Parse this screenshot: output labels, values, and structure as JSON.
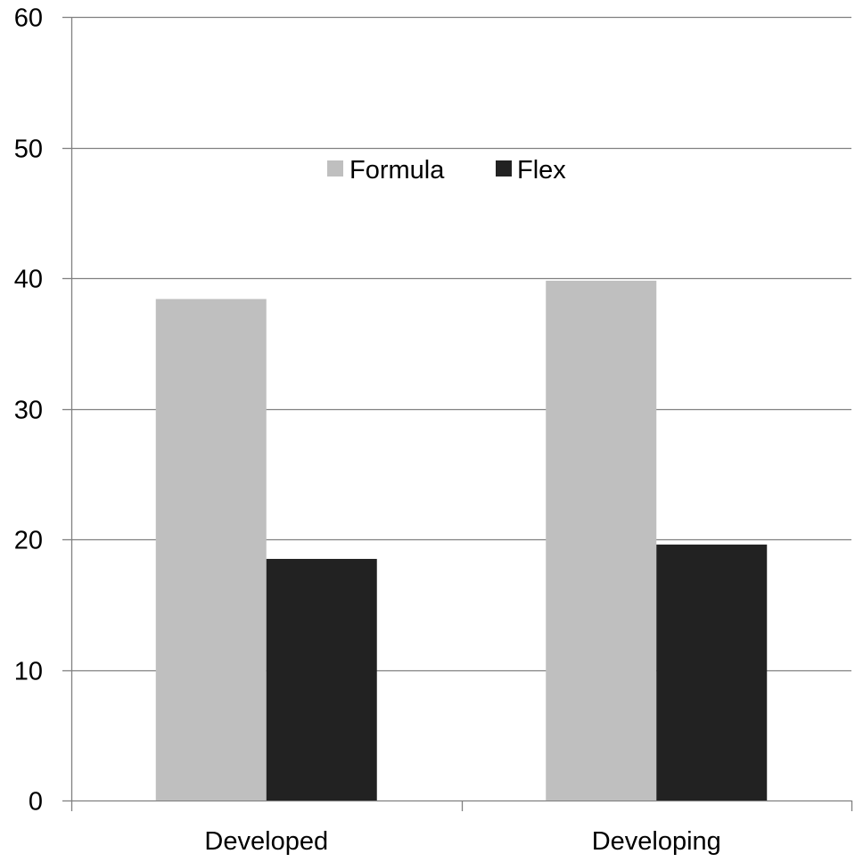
{
  "chart_data": {
    "type": "bar",
    "title": "",
    "xlabel": "",
    "ylabel": "",
    "categories": [
      "Developed",
      "Developing"
    ],
    "series": [
      {
        "name": "Formula",
        "values": [
          38.4,
          39.8
        ],
        "color": "#bfbfbf"
      },
      {
        "name": "Flex",
        "values": [
          18.5,
          19.6
        ],
        "color": "#222222"
      }
    ],
    "ylim": [
      0,
      60
    ],
    "yticks": [
      0,
      10,
      20,
      30,
      40,
      50,
      60
    ],
    "grid": true,
    "legend_position": "top-center",
    "axis_color": "#808080",
    "grid_color": "#808080"
  }
}
